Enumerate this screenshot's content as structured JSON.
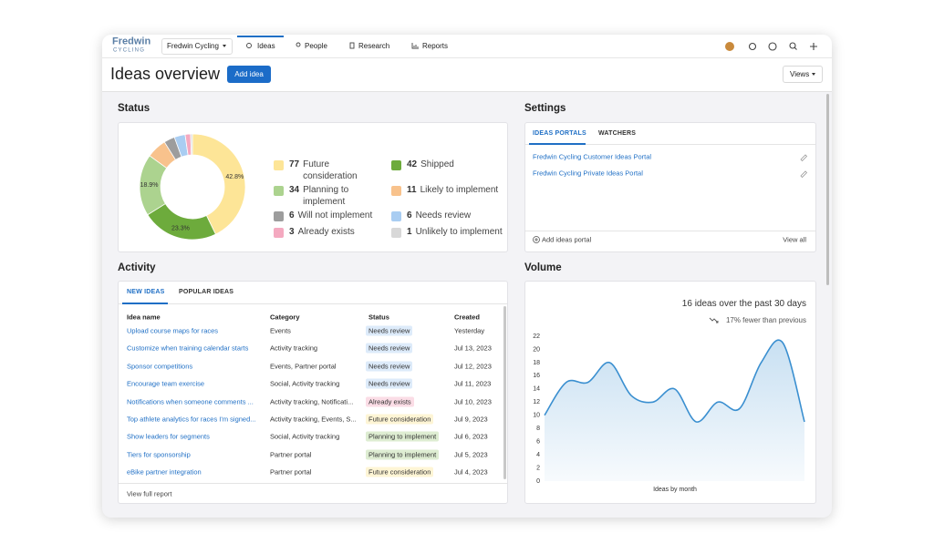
{
  "nav": {
    "logo": "Fredwin",
    "logo_sub": "CYCLING",
    "workspace": "Fredwin Cycling",
    "tabs": [
      "Ideas",
      "People",
      "Research",
      "Reports"
    ]
  },
  "header": {
    "title": "Ideas overview",
    "add_button": "Add idea",
    "views_button": "Views"
  },
  "status": {
    "title": "Status"
  },
  "settings": {
    "title": "Settings",
    "tabs": [
      "IDEAS PORTALS",
      "WATCHERS"
    ],
    "portals": [
      "Fredwin Cycling Customer Ideas Portal",
      "Fredwin Cycling Private Ideas Portal"
    ],
    "add_portal": "Add ideas portal",
    "view_all": "View all"
  },
  "activity": {
    "title": "Activity",
    "tabs": [
      "NEW IDEAS",
      "POPULAR IDEAS"
    ],
    "table": {
      "columns": [
        "Idea name",
        "Category",
        "Status",
        "Created"
      ],
      "rows": [
        [
          "Upload course maps for races",
          "Events",
          "Needs review",
          "Yesterday"
        ],
        [
          "Customize when training calendar starts",
          "Activity tracking",
          "Needs review",
          "Jul 13, 2023"
        ],
        [
          "Sponsor competitions",
          "Events, Partner portal",
          "Needs review",
          "Jul 12, 2023"
        ],
        [
          "Encourage team exercise",
          "Social, Activity tracking",
          "Needs review",
          "Jul 11, 2023"
        ],
        [
          "Notifications when someone comments ...",
          "Activity tracking, Notificati...",
          "Already exists",
          "Jul 10, 2023"
        ],
        [
          "Top athlete analytics for races I'm signed...",
          "Activity tracking, Events, S...",
          "Future consideration",
          "Jul 9, 2023"
        ],
        [
          "Show leaders for segments",
          "Social, Activity tracking",
          "Planning to implement",
          "Jul 6, 2023"
        ],
        [
          "Tiers for sponsorship",
          "Partner portal",
          "Planning to implement",
          "Jul 5, 2023"
        ],
        [
          "eBike partner integration",
          "Partner portal",
          "Future consideration",
          "Jul 4, 2023"
        ]
      ]
    },
    "footer": "View full report"
  },
  "volume": {
    "title": "Volume"
  },
  "chart_data": [
    {
      "type": "donut",
      "categories": [
        "Future consideration",
        "Shipped",
        "Planning to implement",
        "Likely to implement",
        "Will not implement",
        "Needs review",
        "Already exists",
        "Unlikely to implement"
      ],
      "values": [
        77,
        42,
        34,
        11,
        6,
        6,
        3,
        1
      ],
      "value_labels": [
        "42.8%",
        "23.3%",
        "18.9%",
        null,
        null,
        null,
        null,
        null
      ],
      "colors": [
        "#fde597",
        "#6dab3c",
        "#acd38f",
        "#f8c28c",
        "#9d9d9d",
        "#a9cdf2",
        "#f4a9c0",
        "#d8d8d8"
      ]
    },
    {
      "type": "area",
      "title": "16 ideas over the past 30 days",
      "subtitle": "17% fewer than previous",
      "xlabel": "Ideas by month",
      "values": [
        10,
        15,
        15,
        18,
        13,
        12,
        14,
        9,
        12,
        11,
        18,
        21,
        9
      ],
      "color": "#3a8fd0",
      "ylim": [
        0,
        22
      ],
      "yticks": [
        0,
        2,
        4,
        6,
        8,
        10,
        12,
        14,
        16,
        18,
        20,
        22
      ]
    }
  ]
}
